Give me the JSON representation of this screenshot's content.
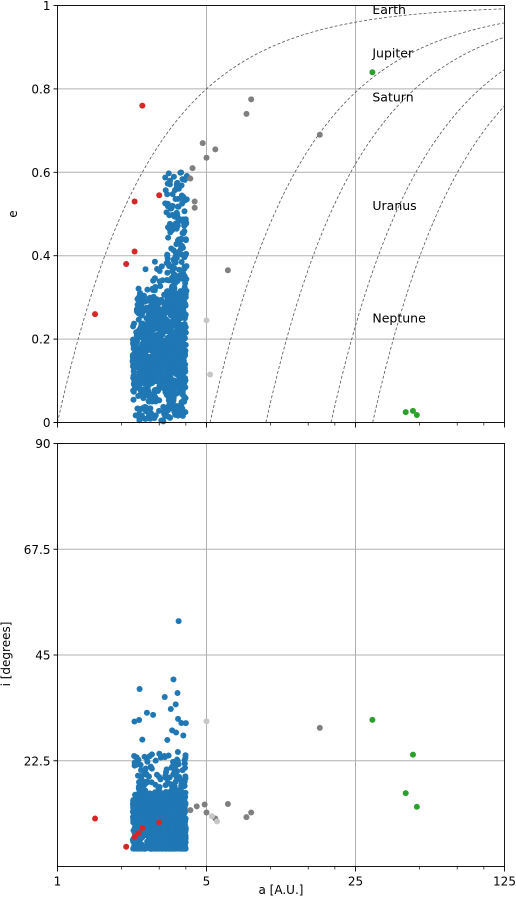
{
  "chart_data": [
    {
      "type": "scatter",
      "panel": "top",
      "xscale": "log",
      "xlim": [
        1,
        125
      ],
      "ylim": [
        0,
        1
      ],
      "xticks": [
        1,
        5,
        25,
        125
      ],
      "xtick_labels": [
        "",
        "",
        "",
        ""
      ],
      "yticks": [
        0,
        0.2,
        0.4,
        0.6,
        0.8,
        1
      ],
      "ytick_labels": [
        "0",
        "0.2",
        "0.4",
        "0.6",
        "0.8",
        "1"
      ],
      "xlabel": "",
      "ylabel": "e",
      "grid": true,
      "curves": [
        {
          "name": "Earth",
          "q": 1.0
        },
        {
          "name": "Jupiter",
          "q": 5.2
        },
        {
          "name": "Saturn",
          "q": 9.5
        },
        {
          "name": "Uranus",
          "q": 19.2
        },
        {
          "name": "Neptune",
          "q": 30.1
        }
      ],
      "curve_labels": [
        {
          "text": "Earth",
          "x": 30,
          "y": 0.98
        },
        {
          "text": "Jupiter",
          "x": 30,
          "y": 0.875
        },
        {
          "text": "Saturn",
          "x": 30,
          "y": 0.77
        },
        {
          "text": "Uranus",
          "x": 30,
          "y": 0.51
        },
        {
          "text": "Neptune",
          "x": 30,
          "y": 0.24
        }
      ],
      "series": [
        {
          "color": "#d62728",
          "points": [
            [
              1.5,
              0.26
            ],
            [
              2.1,
              0.38
            ],
            [
              2.3,
              0.53
            ],
            [
              2.3,
              0.41
            ],
            [
              2.5,
              0.76
            ],
            [
              3.0,
              0.545
            ]
          ]
        },
        {
          "color": "#7f7f7f",
          "points": [
            [
              4.2,
              0.585
            ],
            [
              4.3,
              0.61
            ],
            [
              4.4,
              0.53
            ],
            [
              4.4,
              0.515
            ],
            [
              4.8,
              0.67
            ],
            [
              5.0,
              0.635
            ],
            [
              5.5,
              0.655
            ],
            [
              6.3,
              0.365
            ],
            [
              7.7,
              0.74
            ],
            [
              8.1,
              0.775
            ],
            [
              17.0,
              0.69
            ]
          ]
        },
        {
          "color": "#c7c7c7",
          "points": [
            [
              5.0,
              0.245
            ],
            [
              5.2,
              0.115
            ]
          ]
        },
        {
          "color": "#2ca02c",
          "points": [
            [
              30.0,
              0.84
            ],
            [
              43.0,
              0.025
            ],
            [
              46.5,
              0.028
            ],
            [
              48.5,
              0.018
            ]
          ]
        },
        {
          "color": "#1f77b4",
          "generated": true,
          "count": 1100,
          "x_range": [
            2.1,
            4.1
          ],
          "y_range": [
            0.0,
            0.62
          ]
        }
      ]
    },
    {
      "type": "scatter",
      "panel": "bottom",
      "xscale": "log",
      "xlim": [
        1,
        125
      ],
      "ylim": [
        0,
        90
      ],
      "xticks": [
        1,
        5,
        25,
        125
      ],
      "xtick_labels": [
        "1",
        "5",
        "25",
        "125"
      ],
      "yticks": [
        22.5,
        45,
        67.5,
        90
      ],
      "ytick_labels": [
        "22.5",
        "45",
        "67.5",
        "90"
      ],
      "xlabel": "a [A.U.]",
      "ylabel": "i [degrees]",
      "grid": true,
      "series": [
        {
          "color": "#d62728",
          "points": [
            [
              1.5,
              10.2
            ],
            [
              2.1,
              4.2
            ],
            [
              2.3,
              6.3
            ],
            [
              2.4,
              7.1
            ],
            [
              2.5,
              8.2
            ],
            [
              3.0,
              9.4
            ]
          ]
        },
        {
          "color": "#7f7f7f",
          "points": [
            [
              4.2,
              12.0
            ],
            [
              4.5,
              12.8
            ],
            [
              4.9,
              13.2
            ],
            [
              5.0,
              11.5
            ],
            [
              5.5,
              10.2
            ],
            [
              6.3,
              13.3
            ],
            [
              7.7,
              10.5
            ],
            [
              8.1,
              11.5
            ],
            [
              17.0,
              29.5
            ]
          ]
        },
        {
          "color": "#c7c7c7",
          "points": [
            [
              5.0,
              30.9
            ],
            [
              5.3,
              10.7
            ],
            [
              5.6,
              9.6
            ]
          ]
        },
        {
          "color": "#2ca02c",
          "points": [
            [
              30.0,
              31.2
            ],
            [
              43.0,
              15.6
            ],
            [
              46.5,
              23.8
            ],
            [
              48.5,
              12.7
            ]
          ]
        },
        {
          "color": "#1f77b4",
          "generated": true,
          "count": 1100,
          "x_range": [
            2.1,
            4.1
          ],
          "y_range": [
            3.5,
            52
          ]
        }
      ]
    }
  ]
}
